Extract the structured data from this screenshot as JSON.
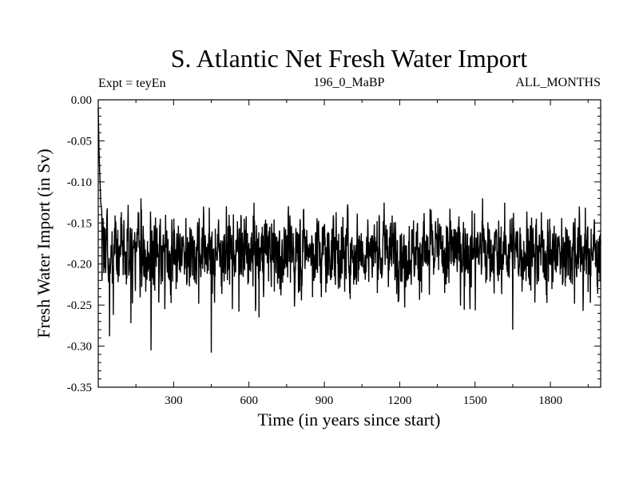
{
  "chart_data": {
    "type": "line",
    "title": "S. Atlantic Net Fresh Water Import",
    "subtitle_left": "Expt = teyEn",
    "subtitle_center": "196_0_MaBP",
    "subtitle_right": "ALL_MONTHS",
    "xlabel": "Time (in years since start)",
    "ylabel": "Fresh Water Import (in Sv)",
    "xlim": [
      0,
      2000
    ],
    "ylim": [
      -0.35,
      0.0
    ],
    "x_ticks": [
      300,
      600,
      900,
      1200,
      1500,
      1800
    ],
    "x_tick_labels": [
      "300",
      "600",
      "900",
      "1200",
      "1500",
      "1800"
    ],
    "y_ticks": [
      0.0,
      -0.05,
      -0.1,
      -0.15,
      -0.2,
      -0.25,
      -0.3,
      -0.35
    ],
    "y_tick_labels": [
      "0.00",
      "-0.05",
      "-0.10",
      "-0.15",
      "-0.20",
      "-0.25",
      "-0.30",
      "-0.35"
    ],
    "grid": false,
    "line_color": "#000000",
    "series": [
      {
        "name": "net fresh water import",
        "start_points": [
          [
            0,
            -0.01
          ],
          [
            3,
            -0.06
          ],
          [
            6,
            -0.09
          ],
          [
            10,
            -0.125
          ],
          [
            14,
            -0.135
          ]
        ],
        "noise_seed": 1960,
        "x_step": 1,
        "mean": -0.183,
        "std": 0.024,
        "spikes": [
          [
            45,
            -0.288
          ],
          [
            60,
            -0.262
          ],
          [
            130,
            -0.272
          ],
          [
            210,
            -0.305
          ],
          [
            265,
            -0.255
          ],
          [
            450,
            -0.308
          ],
          [
            560,
            -0.258
          ],
          [
            640,
            -0.265
          ],
          [
            1220,
            -0.253
          ],
          [
            1480,
            -0.255
          ],
          [
            1650,
            -0.28
          ],
          [
            1930,
            -0.257
          ],
          [
            170,
            -0.12
          ],
          [
            1530,
            -0.12
          ]
        ]
      }
    ]
  }
}
